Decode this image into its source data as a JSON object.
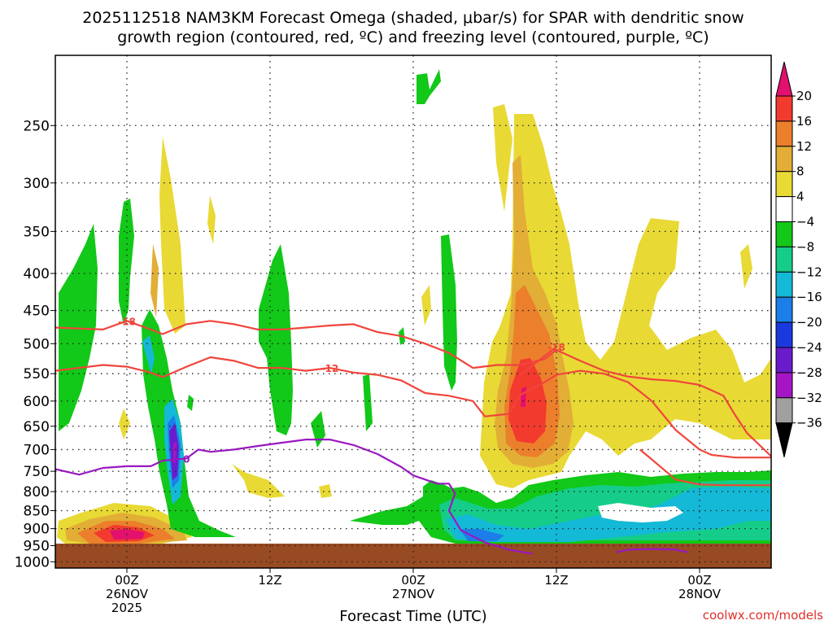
{
  "chart_data": {
    "type": "heatmap",
    "title_line1": "2025112518 NAM3KM Forecast Omega (shaded, μbar/s) for SPAR with dendritic snow",
    "title_line2": "growth region (contoured, red, ºC) and freezing level (contoured, purple, ºC)",
    "xlabel": "Forecast Time (UTC)",
    "credit": "coolwx.com/models",
    "xlim_hours": [
      -6,
      54
    ],
    "ylim_hpa": [
      1020,
      200
    ],
    "y_ticks": [
      250,
      300,
      350,
      400,
      450,
      500,
      550,
      600,
      650,
      700,
      750,
      800,
      850,
      900,
      950,
      1000
    ],
    "x_ticks": [
      {
        "hour": 0,
        "lines": [
          "00Z",
          "26NOV",
          "2025"
        ]
      },
      {
        "hour": 12,
        "lines": [
          "12Z"
        ]
      },
      {
        "hour": 24,
        "lines": [
          "00Z",
          "27NOV"
        ]
      },
      {
        "hour": 36,
        "lines": [
          "12Z"
        ]
      },
      {
        "hour": 48,
        "lines": [
          "00Z",
          "28NOV"
        ]
      }
    ],
    "colorbar": {
      "labels": [
        "20",
        "16",
        "12",
        "8",
        "4",
        "−4",
        "−8",
        "−12",
        "−16",
        "−20",
        "−24",
        "−28",
        "−32",
        "−36"
      ],
      "colors": [
        "#e2106e",
        "#f33a2e",
        "#ec7f2c",
        "#e2ae36",
        "#e8d935",
        "#ffffff",
        "#12c818",
        "#15cd89",
        "#14b9d7",
        "#1c7ee8",
        "#1a3ae0",
        "#6a1ccc",
        "#a515c4",
        "#a0a0a0",
        "#000000"
      ]
    },
    "contours": [
      {
        "label": "-18",
        "color": "#f0453c",
        "points": [
          [
            -6,
            475
          ],
          [
            -2,
            478
          ],
          [
            0,
            465
          ],
          [
            2,
            478
          ],
          [
            3,
            485
          ],
          [
            5,
            470
          ],
          [
            7,
            465
          ],
          [
            9,
            470
          ],
          [
            11,
            478
          ],
          [
            13,
            478
          ],
          [
            15,
            475
          ],
          [
            17,
            472
          ],
          [
            19,
            470
          ],
          [
            21,
            482
          ],
          [
            23,
            488
          ],
          [
            25,
            500
          ],
          [
            27,
            515
          ],
          [
            29,
            540
          ],
          [
            31,
            535
          ],
          [
            33,
            535
          ],
          [
            35,
            525
          ],
          [
            36,
            510
          ],
          [
            38,
            528
          ],
          [
            40,
            545
          ],
          [
            42,
            555
          ],
          [
            44,
            560
          ],
          [
            46,
            563
          ],
          [
            48,
            570
          ],
          [
            50,
            590
          ],
          [
            51,
            628
          ],
          [
            52,
            665
          ],
          [
            54,
            715
          ]
        ],
        "label_at": 2
      },
      {
        "label": "-12",
        "color": "#f0453c",
        "points": [
          [
            -6,
            545
          ],
          [
            -2,
            535
          ],
          [
            0,
            538
          ],
          [
            2,
            548
          ],
          [
            3,
            556
          ],
          [
            5,
            538
          ],
          [
            7,
            522
          ],
          [
            9,
            528
          ],
          [
            11,
            540
          ],
          [
            13,
            540
          ],
          [
            15,
            545
          ],
          [
            17,
            540
          ],
          [
            19,
            548
          ],
          [
            21,
            552
          ],
          [
            23,
            562
          ],
          [
            25,
            585
          ],
          [
            27,
            590
          ],
          [
            29,
            600
          ],
          [
            30,
            630
          ],
          [
            32,
            625
          ],
          [
            33,
            588
          ],
          [
            35,
            565
          ],
          [
            36,
            552
          ],
          [
            38,
            545
          ],
          [
            40,
            550
          ],
          [
            42,
            565
          ],
          [
            44,
            600
          ],
          [
            46,
            658
          ],
          [
            48,
            700
          ],
          [
            49,
            712
          ],
          [
            51,
            718
          ],
          [
            54,
            718
          ]
        ],
        "label_at": 11
      },
      {
        "label": "-18",
        "color": "#f0453c",
        "points": [
          [
            33,
            552
          ],
          [
            35,
            520
          ],
          [
            36,
            505
          ]
        ],
        "label_at": 2
      },
      {
        "label": "-12",
        "color": "#f0453c",
        "points": [
          [
            43,
            700
          ],
          [
            46,
            770
          ],
          [
            48,
            782
          ],
          [
            50,
            784
          ],
          [
            54,
            784
          ]
        ],
        "label_at": -1
      },
      {
        "label": "0",
        "color": "#9a18c0",
        "points": [
          [
            -6,
            745
          ],
          [
            -4,
            758
          ],
          [
            -2,
            742
          ],
          [
            0,
            738
          ],
          [
            2,
            738
          ],
          [
            3,
            725
          ],
          [
            5,
            720
          ],
          [
            6,
            700
          ],
          [
            7,
            705
          ],
          [
            9,
            700
          ],
          [
            11,
            692
          ],
          [
            13,
            685
          ],
          [
            15,
            678
          ],
          [
            17,
            678
          ],
          [
            19,
            690
          ],
          [
            21,
            710
          ],
          [
            23,
            740
          ],
          [
            24,
            760
          ],
          [
            26,
            780
          ],
          [
            27,
            780
          ],
          [
            27.5,
            805
          ],
          [
            27,
            850
          ],
          [
            28,
            905
          ],
          [
            30,
            940
          ],
          [
            32,
            962
          ],
          [
            34,
            975
          ]
        ],
        "label_at": 6
      },
      {
        "label": "",
        "color": "#9a18c0",
        "points": [
          [
            41,
            970
          ],
          [
            42,
            962
          ],
          [
            44,
            960
          ],
          [
            46,
            962
          ],
          [
            47,
            970
          ]
        ],
        "label_at": -1
      }
    ]
  }
}
